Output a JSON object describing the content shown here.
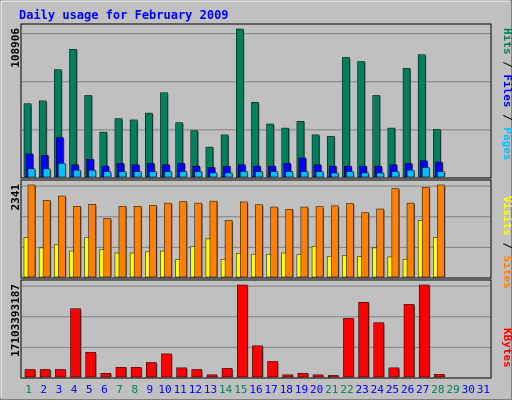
{
  "colors": {
    "background": "#c0c0c0",
    "title": "#0000ff",
    "hits": "#00805c",
    "files": "#0000ff",
    "pages": "#00c0ff",
    "visits": "#ffff00",
    "sites": "#ff8000",
    "kbytes": "#ff0000",
    "grid": "#808080",
    "weekend_day": "#00805c",
    "weekday_day": "#0000ff"
  },
  "chart_data": {
    "type": "bar",
    "title": "Daily usage for February 2009",
    "days": [
      "1",
      "2",
      "3",
      "4",
      "5",
      "6",
      "7",
      "8",
      "9",
      "10",
      "11",
      "12",
      "13",
      "14",
      "15",
      "16",
      "17",
      "18",
      "19",
      "20",
      "21",
      "22",
      "23",
      "24",
      "25",
      "26",
      "27",
      "28",
      "29",
      "30",
      "31"
    ],
    "weekend_days": [
      "1",
      "7",
      "8",
      "14",
      "15",
      "21",
      "22",
      "28",
      "29"
    ],
    "panels": [
      {
        "name": "hits-files-pages",
        "ymax_label": "108906",
        "ymax": 108906,
        "legend": [
          "Pages",
          "Files",
          "Hits"
        ],
        "series": [
          {
            "name": "Hits",
            "values": [
              54000,
              56000,
              79000,
              94000,
              60000,
              33000,
              43000,
              42000,
              47000,
              62000,
              40000,
              34000,
              22000,
              31000,
              108906,
              55000,
              39000,
              36000,
              41000,
              31000,
              30000,
              88000,
              85000,
              60000,
              36000,
              80000,
              90000,
              35000,
              0,
              0,
              0
            ]
          },
          {
            "name": "Files",
            "values": [
              17000,
              16000,
              29000,
              9000,
              13000,
              8000,
              10000,
              9000,
              10000,
              9000,
              10000,
              8000,
              7000,
              8000,
              9000,
              8000,
              8000,
              10000,
              14000,
              9000,
              8000,
              8000,
              8000,
              8000,
              9000,
              10000,
              12000,
              11000,
              0,
              0,
              0
            ]
          },
          {
            "name": "Pages",
            "values": [
              6000,
              6000,
              10000,
              5000,
              5000,
              4000,
              4000,
              4000,
              4000,
              4000,
              4000,
              4000,
              3000,
              3000,
              4000,
              4000,
              4000,
              4000,
              4000,
              4000,
              3000,
              4000,
              3000,
              3000,
              4000,
              5000,
              7000,
              4000,
              0,
              0,
              0
            ]
          }
        ]
      },
      {
        "name": "visits-sites",
        "ymax_label": "2341",
        "ymax": 2341,
        "legend": [
          "Sites",
          "Visits"
        ],
        "series": [
          {
            "name": "Sites",
            "values": [
              2341,
              1950,
              2060,
              1800,
              1850,
              1490,
              1800,
              1800,
              1820,
              1880,
              1920,
              1880,
              1930,
              1440,
              1910,
              1840,
              1780,
              1720,
              1780,
              1790,
              1810,
              1870,
              1640,
              1730,
              2250,
              1880,
              2280,
              2341,
              0,
              0,
              0
            ]
          },
          {
            "name": "Visits",
            "values": [
              1000,
              740,
              820,
              660,
              1010,
              700,
              610,
              610,
              640,
              660,
              440,
              780,
              970,
              450,
              600,
              580,
              580,
              610,
              570,
              780,
              520,
              540,
              520,
              740,
              510,
              450,
              1440,
              1000,
              0,
              0,
              0
            ]
          }
        ]
      },
      {
        "name": "kbytes",
        "ymax_label": "17103393187",
        "ymax": 17103393187,
        "legend": [
          "KBytes"
        ],
        "series": [
          {
            "name": "KBytes",
            "values": [
              1400000000,
              1400000000,
              1400000000,
              12700000000,
              4600000000,
              700000000,
              1800000000,
              1800000000,
              2700000000,
              4300000000,
              1700000000,
              1400000000,
              400000000,
              1600000000,
              17103393187,
              5800000000,
              2900000000,
              400000000,
              700000000,
              400000000,
              300000000,
              10900000000,
              13900000000,
              10100000000,
              1700000000,
              13500000000,
              17103393187,
              500000000,
              0,
              0,
              0
            ]
          }
        ]
      }
    ]
  }
}
